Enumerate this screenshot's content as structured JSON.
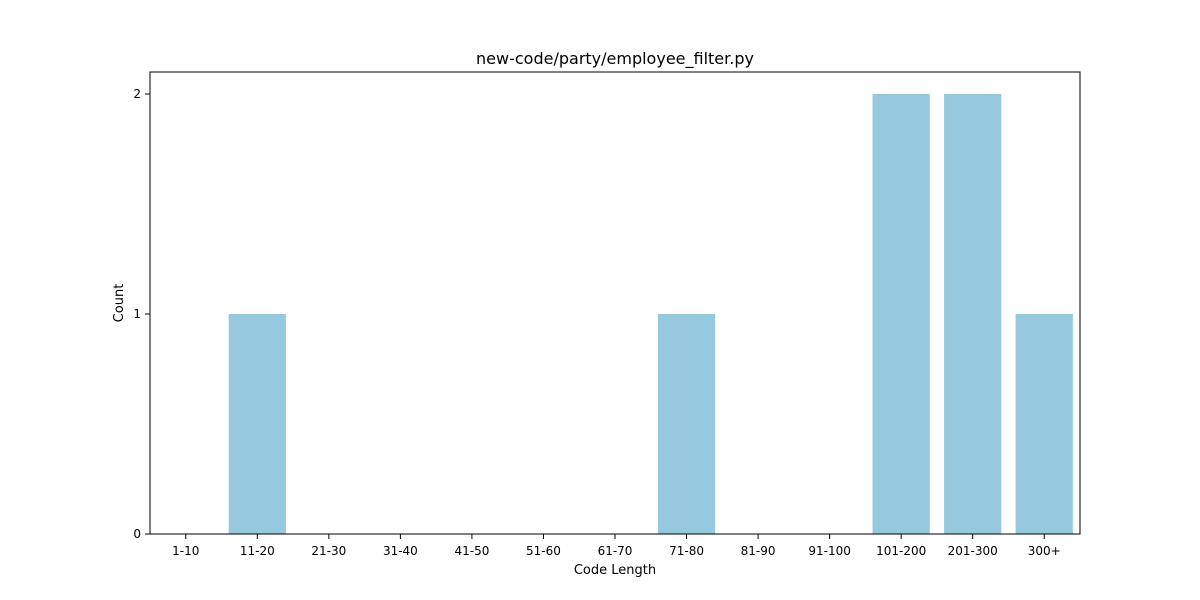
{
  "chart_data": {
    "type": "bar",
    "title": "new-code/party/employee_filter.py",
    "xlabel": "Code Length",
    "ylabel": "Count",
    "categories": [
      "1-10",
      "11-20",
      "21-30",
      "31-40",
      "41-50",
      "51-60",
      "61-70",
      "71-80",
      "81-90",
      "91-100",
      "101-200",
      "201-300",
      "300+"
    ],
    "values": [
      0,
      1,
      0,
      0,
      0,
      0,
      0,
      1,
      0,
      0,
      2,
      2,
      1
    ],
    "ylim": [
      0,
      2.1
    ],
    "yticks": [
      0,
      1,
      2
    ],
    "grid": false,
    "legend": "none",
    "bar_color": "#96c9dd"
  }
}
